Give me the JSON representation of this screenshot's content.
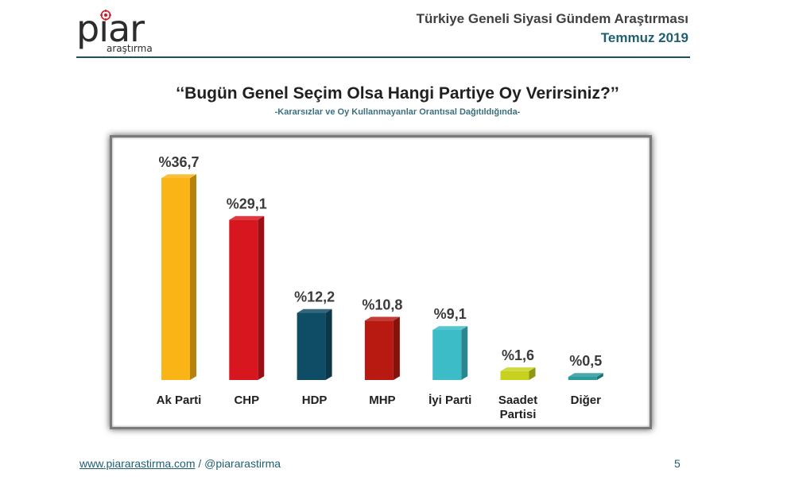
{
  "logo": {
    "word": "pıar",
    "sub": "araştırma"
  },
  "header": {
    "title": "Türkiye Geneli Siyasi Gündem Araştırması",
    "period": "Temmuz 2019"
  },
  "chart_data": {
    "type": "bar",
    "title": "‘‘Bugün Genel Seçim Olsa Hangi Partiye Oy Verirsiniz?’’",
    "subtitle": "-Kararsızlar ve Oy Kullanmayanlar Orantısal Dağıtıldığında-",
    "categories": [
      "Ak Parti",
      "CHP",
      "HDP",
      "MHP",
      "İyi Parti",
      "Saadet Partisi",
      "Diğer"
    ],
    "category_lines": [
      [
        "Ak Parti"
      ],
      [
        "CHP"
      ],
      [
        "HDP"
      ],
      [
        "MHP"
      ],
      [
        "İyi Parti"
      ],
      [
        "Saadet",
        "Partisi"
      ],
      [
        "Diğer"
      ]
    ],
    "values": [
      36.7,
      29.1,
      12.2,
      10.8,
      9.1,
      1.6,
      0.5
    ],
    "value_labels": [
      "%36,7",
      "%29,1",
      "%12,2",
      "%10,8",
      "%9,1",
      "%1,6",
      "%0,5"
    ],
    "colors": [
      "#fbb416",
      "#d7161f",
      "#0f4c66",
      "#b81a12",
      "#3bbcc6",
      "#c8d21e",
      "#2a9b9c"
    ],
    "ylim": [
      0,
      36.7
    ],
    "grid": false,
    "legend": "none"
  },
  "footer": {
    "url": "www.piararastirma.com",
    "separator": " / ",
    "handle": "@piararastirma",
    "page": "5"
  }
}
